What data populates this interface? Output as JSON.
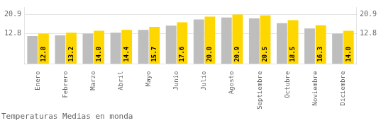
{
  "chart_data": {
    "type": "bar",
    "title": "Temperaturas Medias en monda",
    "categories": [
      "Enero",
      "Febrero",
      "Marzo",
      "Abril",
      "Mayo",
      "Junio",
      "Julio",
      "Agosto",
      "Septiembre",
      "Octubre",
      "Noviembre",
      "Diciembre"
    ],
    "series": [
      {
        "color": "#BEBEBE",
        "values": [
          11.8,
          12.1,
          12.8,
          13.2,
          14.4,
          16.2,
          18.8,
          19.6,
          19.2,
          17.2,
          15.0,
          12.8
        ]
      },
      {
        "color": "#FFD700",
        "values": [
          12.8,
          13.2,
          14.0,
          14.4,
          15.7,
          17.6,
          20.0,
          20.9,
          20.5,
          18.5,
          16.3,
          14.0
        ],
        "value_labels": [
          "12.8",
          "13.2",
          "14.0",
          "14.4",
          "15.7",
          "17.6",
          "20.0",
          "20.9",
          "20.5",
          "18.5",
          "16.3",
          "14.0"
        ],
        "data_labels": true
      }
    ],
    "ylim": [
      0,
      24.0
    ],
    "yticks": [
      12.8,
      20.9
    ],
    "y2lim": [
      0,
      24.0
    ],
    "y2ticks": [
      12.8,
      20.9
    ],
    "grid": true
  }
}
